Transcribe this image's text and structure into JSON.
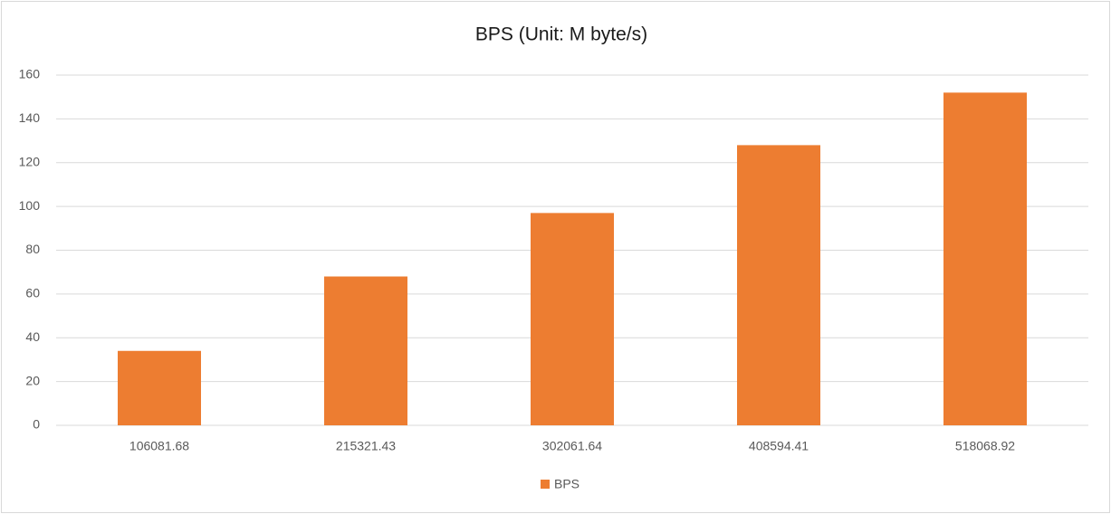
{
  "chart_data": {
    "type": "bar",
    "title": "BPS (Unit: M byte/s)",
    "categories": [
      "106081.68",
      "215321.43",
      "302061.64",
      "408594.41",
      "518068.92"
    ],
    "series": [
      {
        "name": "BPS",
        "color": "#ed7d31",
        "values": [
          34,
          68,
          97,
          128,
          152
        ]
      }
    ],
    "ylim": [
      0,
      160
    ],
    "yticks": [
      0,
      20,
      40,
      60,
      80,
      100,
      120,
      140,
      160
    ],
    "grid": true,
    "legend": "bottom"
  }
}
